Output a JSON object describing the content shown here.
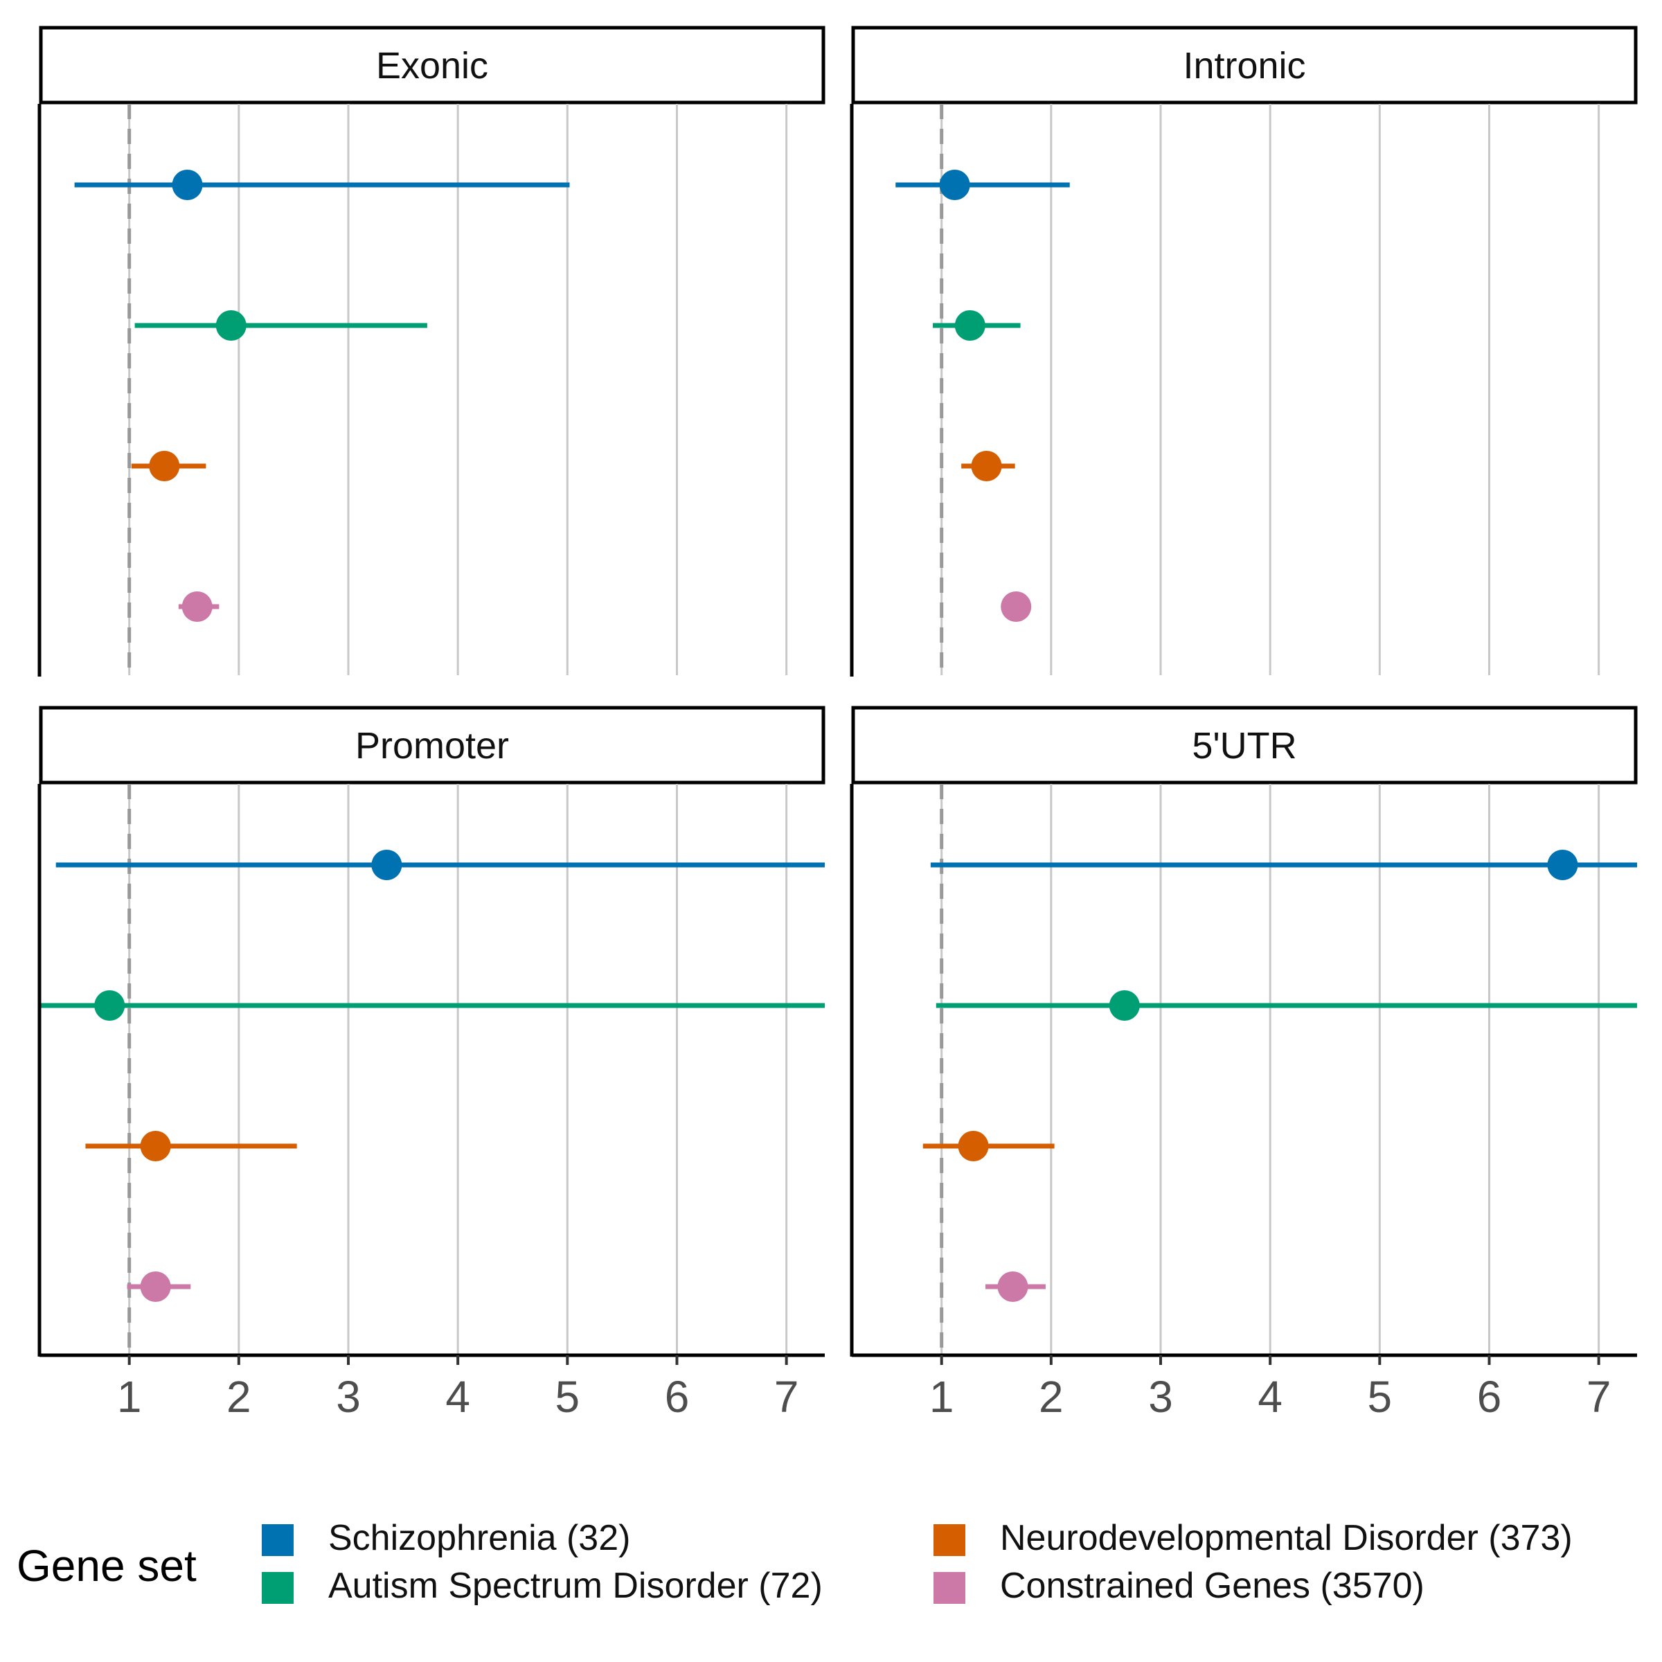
{
  "chart_data": {
    "type": "forest",
    "xlabel": "",
    "ylabel": "",
    "xlim": [
      0.18,
      7.35
    ],
    "xticks": [
      1,
      2,
      3,
      4,
      5,
      6,
      7
    ],
    "reference_line": 1,
    "grid": "vertical-major",
    "legend": {
      "title": "Gene set",
      "placement": "bottom",
      "entries": [
        {
          "label": "Schizophrenia (32)",
          "color": "#0072B2"
        },
        {
          "label": "Autism Spectrum Disorder (72)",
          "color": "#009E73"
        },
        {
          "label": "Neurodevelopmental Disorder (373)",
          "color": "#D55E00"
        },
        {
          "label": "Constrained Genes (3570)",
          "color": "#CC79A7"
        }
      ]
    },
    "panels": [
      {
        "title": "Exonic",
        "series": [
          {
            "name": "Schizophrenia (32)",
            "estimate": 1.53,
            "low": 0.5,
            "high": 5.02
          },
          {
            "name": "Autism Spectrum Disorder (72)",
            "estimate": 1.93,
            "low": 1.05,
            "high": 3.72
          },
          {
            "name": "Neurodevelopmental Disorder (373)",
            "estimate": 1.32,
            "low": 1.02,
            "high": 1.7
          },
          {
            "name": "Constrained Genes (3570)",
            "estimate": 1.62,
            "low": 1.45,
            "high": 1.82
          }
        ]
      },
      {
        "title": "Intronic",
        "series": [
          {
            "name": "Schizophrenia (32)",
            "estimate": 1.12,
            "low": 0.58,
            "high": 2.17
          },
          {
            "name": "Autism Spectrum Disorder (72)",
            "estimate": 1.26,
            "low": 0.92,
            "high": 1.72
          },
          {
            "name": "Neurodevelopmental Disorder (373)",
            "estimate": 1.41,
            "low": 1.18,
            "high": 1.67
          },
          {
            "name": "Constrained Genes (3570)",
            "estimate": 1.68,
            "low": 1.62,
            "high": 1.74
          }
        ]
      },
      {
        "title": "Promoter",
        "series": [
          {
            "name": "Schizophrenia (32)",
            "estimate": 3.35,
            "low": 0.33,
            "high": 7.35
          },
          {
            "name": "Autism Spectrum Disorder (72)",
            "estimate": 0.82,
            "low": 0.18,
            "high": 7.35
          },
          {
            "name": "Neurodevelopmental Disorder (373)",
            "estimate": 1.24,
            "low": 0.6,
            "high": 2.53
          },
          {
            "name": "Constrained Genes (3570)",
            "estimate": 1.24,
            "low": 0.98,
            "high": 1.56
          }
        ]
      },
      {
        "title": "5'UTR",
        "series": [
          {
            "name": "Schizophrenia (32)",
            "estimate": 6.67,
            "low": 0.9,
            "high": 7.35
          },
          {
            "name": "Autism Spectrum Disorder (72)",
            "estimate": 2.67,
            "low": 0.95,
            "high": 7.35
          },
          {
            "name": "Neurodevelopmental Disorder (373)",
            "estimate": 1.29,
            "low": 0.83,
            "high": 2.03
          },
          {
            "name": "Constrained Genes (3570)",
            "estimate": 1.65,
            "low": 1.4,
            "high": 1.95
          }
        ]
      }
    ]
  }
}
